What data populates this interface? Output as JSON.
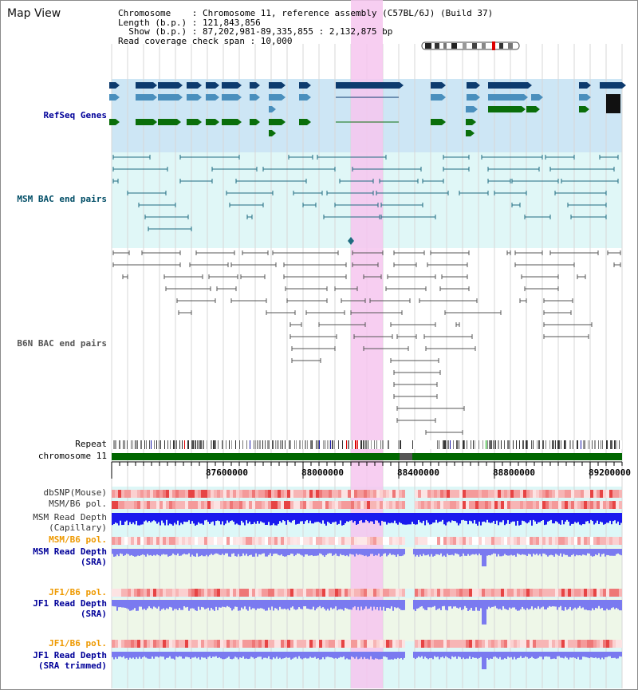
{
  "title": "Map View",
  "info": {
    "lines": [
      "Chromosome    : Chromosome 11, reference assembly (C57BL/6J) (Build 37)",
      "Length (b.p.) : 121,843,856",
      "  Show (b.p.) : 87,202,981-89,335,855 : 2,132,875 bp",
      "Read coverage check span : 10,000"
    ]
  },
  "tracks": {
    "refseq": "RefSeq Genes",
    "msm_bac": "MSM BAC end pairs",
    "b6n_bac": "B6N BAC end pairs",
    "repeat": "Repeat",
    "chromosome": "chromosome 11",
    "dbsnp": "dbSNP(Mouse)",
    "msm_b6_pol": "MSM/B6 pol.",
    "msm_depth_cap_1": "MSM Read Depth",
    "msm_depth_cap_2": "(Capillary)",
    "msm_b6_pol_2": "MSM/B6 pol.",
    "msm_depth_sra_1": "MSM Read Depth",
    "msm_depth_sra_2": "(SRA)",
    "jf1_b6_pol": "JF1/B6 pol.",
    "jf1_depth_sra_1": "JF1 Read Depth",
    "jf1_depth_sra_2": "(SRA)",
    "jf1_b6_pol_2": "JF1/B6 pol.",
    "jf1_depth_trim_1": "JF1 Read Depth",
    "jf1_depth_trim_2": "(SRA trimmed)"
  },
  "axis": {
    "ticks": [
      "87600000",
      "88000000",
      "88400000",
      "88800000",
      "89200000"
    ]
  },
  "colors": {
    "highlight": "#f6c6ee",
    "gene_dark": "#0d3b6e",
    "gene_mid": "#4a8fbd",
    "gene_green": "#0a6e0a",
    "bac_msm": "#1f6b80",
    "bac_b6n": "#555555",
    "chrom_green": "#006600",
    "depth_blue": "#1a1aee",
    "depth_light": "#7a7af0"
  }
}
